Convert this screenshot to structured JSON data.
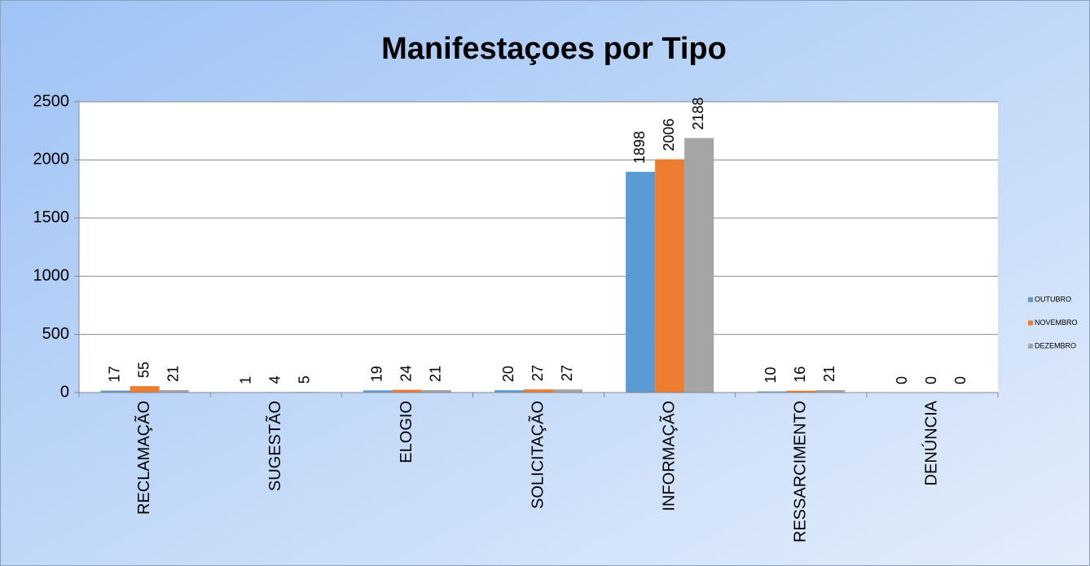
{
  "chart_data": {
    "type": "bar",
    "title": "Manifestaçoes por Tipo",
    "categories": [
      "RECLAMAÇÃO",
      "SUGESTÃO",
      "ELOGIO",
      "SOLICITAÇÃO",
      "INFORMAÇÃO",
      "RESSARCIMENTO",
      "DENÚNCIA"
    ],
    "series": [
      {
        "name": "OUTUBRO",
        "color": "#5b9bd5",
        "values": [
          17,
          1,
          19,
          20,
          1898,
          10,
          0
        ]
      },
      {
        "name": "NOVEMBRO",
        "color": "#ed7d31",
        "values": [
          55,
          4,
          24,
          27,
          2006,
          16,
          0
        ]
      },
      {
        "name": "DEZEMBRO",
        "color": "#a5a5a5",
        "values": [
          21,
          5,
          21,
          27,
          2188,
          21,
          0
        ]
      }
    ],
    "ylim": [
      0,
      2500
    ],
    "yticks": [
      0,
      500,
      1000,
      1500,
      2000,
      2500
    ],
    "grid": true,
    "legend": "right"
  }
}
